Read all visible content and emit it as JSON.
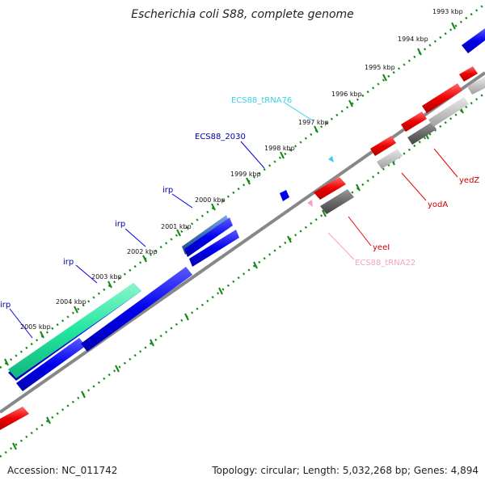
{
  "title": "Escherichia coli S88, complete genome",
  "footer": {
    "accession": "Accession: NC_011742",
    "summary": "Topology: circular; Length: 5,032,268 bp; Genes: 4,894"
  },
  "scale_labels": [
    "1993 kbp",
    "1994 kbp",
    "1995 kbp",
    "1996 kbp",
    "1997 kbp",
    "1998 kbp",
    "1999 kbp",
    "2000 kbp",
    "2001 kbp",
    "2002 kbp",
    "2003 kbp",
    "2004 kbp",
    "2005 kbp"
  ],
  "feature_labels": {
    "tRNA76": "ECS88_tRNA76",
    "ecs2030": "ECS88_2030",
    "irp1": "irp",
    "irp2": "irp",
    "irp3": "irp",
    "irp4": "irp",
    "yedZ": "yedZ",
    "yodA": "yodA",
    "yeeI": "yeeI",
    "tRNA22": "ECS88_tRNA22"
  },
  "colors": {
    "forward_cds": "#0000ee",
    "reverse_cds": "#ee0000",
    "rna": "#3ecfe6",
    "trna_reverse": "#f4a3c4",
    "highlight_cds": "#22e6a0",
    "steel_cds": "#3a6fb5",
    "grey_feature": "#c4c4c4",
    "dark_grey_feature": "#6a6a6a",
    "backbone": "#808080",
    "ticks": "#118811"
  }
}
